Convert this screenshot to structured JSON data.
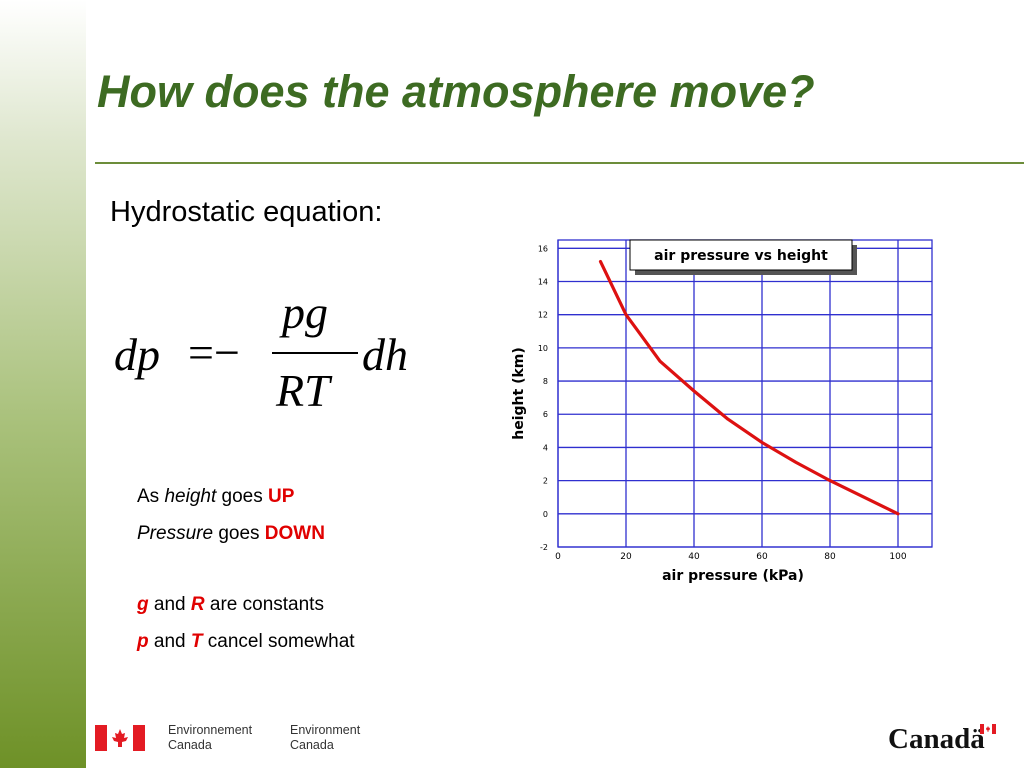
{
  "slide": {
    "title": "How does the atmosphere move?",
    "subtitle": "Hydrostatic equation:"
  },
  "equation": {
    "lhs": "dp",
    "operator": "=−",
    "numerator": "pg",
    "denominator": "RT",
    "rhs": "dh"
  },
  "notes": {
    "line1": {
      "as": "As",
      "height": "height",
      "goes": "goes",
      "up": "UP"
    },
    "line2": {
      "pressure": "Pressure",
      "goes": "goes",
      "down": "DOWN"
    },
    "line3": {
      "g": "g",
      "and": "and",
      "r": "R",
      "rest": "are constants"
    },
    "line4": {
      "p": "p",
      "and": "and",
      "t": "T",
      "rest": "cancel somewhat"
    }
  },
  "footer": {
    "dept_fr": "Environnement",
    "dept_fr_2": "Canada",
    "dept_en": "Environment",
    "dept_en_2": "Canada",
    "wordmark": "Canadä"
  },
  "colors": {
    "title": "#3d6b22",
    "grid": "#2f2fcf",
    "curve": "#dd1111",
    "highlight": "#e00000"
  },
  "chart_data": {
    "type": "line",
    "title": "air pressure vs height",
    "xlabel": "air pressure (kPa)",
    "ylabel": "height (km)",
    "xlim": [
      0,
      110
    ],
    "ylim": [
      -2,
      16.5
    ],
    "x_ticks": [
      0,
      20,
      40,
      60,
      80,
      100
    ],
    "y_ticks": [
      -2,
      0,
      2,
      4,
      6,
      8,
      10,
      12,
      14,
      16
    ],
    "grid": true,
    "series": [
      {
        "x": [
          12.5,
          20,
          30,
          40,
          50,
          60,
          70,
          80,
          90,
          100
        ],
        "y": [
          15.2,
          12,
          9.2,
          7.4,
          5.7,
          4.3,
          3.1,
          2.0,
          1.0,
          0
        ]
      }
    ]
  }
}
